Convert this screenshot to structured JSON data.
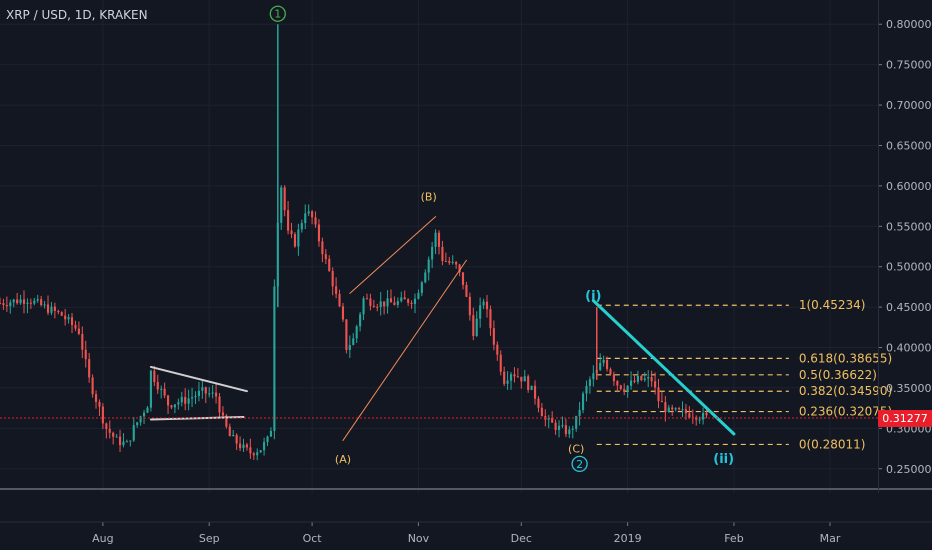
{
  "header": {
    "title": "XRP / USD, 1D, KRAKEN"
  },
  "current_price": {
    "label": "0.31277",
    "value": 0.31277,
    "color": "#e91e2b"
  },
  "colors": {
    "background": "#131722",
    "up": "#26a69a",
    "down": "#ef5350",
    "wave_label_green": "#4caf50",
    "wave_label_teal": "#26c6da",
    "abc_label": "#f0c060",
    "fib_line": "#f0c060",
    "trendline": "#26d0ce",
    "channel": "#f48a5a"
  },
  "chart_data": {
    "type": "candlestick",
    "symbol": "XRP / USD",
    "interval": "1D",
    "exchange": "KRAKEN",
    "ylim": [
      0.22,
      0.83
    ],
    "y_ticks": [
      "0.25000",
      "0.30000",
      "0.35000",
      "0.40000",
      "0.45000",
      "0.50000",
      "0.55000",
      "0.60000",
      "0.65000",
      "0.70000",
      "0.75000",
      "0.80000"
    ],
    "x_ticks": [
      "Aug",
      "Sep",
      "Oct",
      "Nov",
      "Dec",
      "2019",
      "Feb",
      "Mar"
    ],
    "x_ticks_date": [
      "2018-08-01",
      "2018-09-01",
      "2018-10-01",
      "2018-11-01",
      "2018-12-01",
      "2019-01-01",
      "2019-02-01",
      "2019-03-01"
    ],
    "date_range": [
      "2018-07-02",
      "2019-03-15"
    ],
    "price_path": [
      [
        "2018-07-02",
        0.455
      ],
      [
        "2018-07-10",
        0.46
      ],
      [
        "2018-07-20",
        0.44
      ],
      [
        "2018-07-25",
        0.42
      ],
      [
        "2018-07-28",
        0.36
      ],
      [
        "2018-08-02",
        0.3
      ],
      [
        "2018-08-05",
        0.285
      ],
      [
        "2018-08-08",
        0.28
      ],
      [
        "2018-08-10",
        0.3
      ],
      [
        "2018-08-14",
        0.33
      ],
      [
        "2018-08-15",
        0.37
      ],
      [
        "2018-08-20",
        0.33
      ],
      [
        "2018-08-25",
        0.335
      ],
      [
        "2018-08-30",
        0.345
      ],
      [
        "2018-09-03",
        0.34
      ],
      [
        "2018-09-05",
        0.31
      ],
      [
        "2018-09-07",
        0.29
      ],
      [
        "2018-09-11",
        0.275
      ],
      [
        "2018-09-13",
        0.27
      ],
      [
        "2018-09-16",
        0.275
      ],
      [
        "2018-09-18",
        0.285
      ],
      [
        "2018-09-19",
        0.3
      ],
      [
        "2018-09-20",
        0.48
      ],
      [
        "2018-09-21",
        0.56
      ],
      [
        "2018-09-22",
        0.6
      ],
      [
        "2018-09-24",
        0.54
      ],
      [
        "2018-09-26",
        0.53
      ],
      [
        "2018-09-29",
        0.57
      ],
      [
        "2018-10-01",
        0.56
      ],
      [
        "2018-10-04",
        0.52
      ],
      [
        "2018-10-07",
        0.48
      ],
      [
        "2018-10-10",
        0.43
      ],
      [
        "2018-10-11",
        0.4
      ],
      [
        "2018-10-13",
        0.41
      ],
      [
        "2018-10-16",
        0.46
      ],
      [
        "2018-10-20",
        0.455
      ],
      [
        "2018-10-25",
        0.455
      ],
      [
        "2018-10-31",
        0.46
      ],
      [
        "2018-11-04",
        0.51
      ],
      [
        "2018-11-06",
        0.54
      ],
      [
        "2018-11-08",
        0.51
      ],
      [
        "2018-11-12",
        0.5
      ],
      [
        "2018-11-14",
        0.48
      ],
      [
        "2018-11-17",
        0.42
      ],
      [
        "2018-11-20",
        0.46
      ],
      [
        "2018-11-24",
        0.39
      ],
      [
        "2018-11-26",
        0.36
      ],
      [
        "2018-11-28",
        0.37
      ],
      [
        "2018-12-02",
        0.36
      ],
      [
        "2018-12-05",
        0.34
      ],
      [
        "2018-12-08",
        0.31
      ],
      [
        "2018-12-12",
        0.3
      ],
      [
        "2018-12-15",
        0.295
      ],
      [
        "2018-12-17",
        0.31
      ],
      [
        "2018-12-19",
        0.34
      ],
      [
        "2018-12-21",
        0.36
      ],
      [
        "2018-12-23",
        0.37
      ],
      [
        "2018-12-25",
        0.385
      ],
      [
        "2018-12-27",
        0.37
      ],
      [
        "2018-12-29",
        0.355
      ],
      [
        "2018-12-31",
        0.35
      ],
      [
        "2019-01-04",
        0.36
      ],
      [
        "2019-01-08",
        0.36
      ],
      [
        "2019-01-10",
        0.335
      ],
      [
        "2019-01-13",
        0.32
      ],
      [
        "2019-01-16",
        0.32
      ],
      [
        "2019-01-20",
        0.318
      ],
      [
        "2019-01-24",
        0.313
      ]
    ],
    "pivot_candles": [
      {
        "date": "2018-09-21",
        "low": 0.45,
        "high": 0.8,
        "color": "up"
      },
      {
        "date": "2018-12-23",
        "low": 0.36,
        "high": 0.45,
        "color": "down"
      }
    ],
    "wave_labels": [
      {
        "text": "1",
        "style": "circle",
        "date": "2018-09-21",
        "price": 0.813,
        "color": "wave_label_green"
      },
      {
        "text": "(B)",
        "style": "plain",
        "date": "2018-11-04",
        "price": 0.587,
        "color": "abc_label"
      },
      {
        "text": "(A)",
        "style": "plain",
        "date": "2018-10-10",
        "price": 0.262,
        "color": "abc_label"
      },
      {
        "text": "(C)",
        "style": "plain",
        "date": "2018-12-17",
        "price": 0.275,
        "color": "abc_label"
      },
      {
        "text": "2",
        "style": "circle",
        "date": "2018-12-18",
        "price": 0.256,
        "color": "wave_label_teal"
      },
      {
        "text": "(i)",
        "style": "plain",
        "date": "2018-12-22",
        "price": 0.464,
        "color": "wave_label_teal"
      },
      {
        "text": "(ii)",
        "style": "plain",
        "date": "2019-01-29",
        "price": 0.262,
        "color": "wave_label_teal"
      }
    ],
    "fib_levels": [
      {
        "ratio": "1",
        "price": 0.45234,
        "label": "1(0.45234)"
      },
      {
        "ratio": "0.618",
        "price": 0.38655,
        "label": "0.618(0.38655)"
      },
      {
        "ratio": "0.5",
        "price": 0.36622,
        "label": "0.5(0.36622)"
      },
      {
        "ratio": "0.382",
        "price": 0.3459,
        "label": "0.382(0.34590)"
      },
      {
        "ratio": "0.236",
        "price": 0.32075,
        "label": "0.236(0.32075)"
      },
      {
        "ratio": "0",
        "price": 0.28011,
        "label": "0(0.28011)"
      }
    ],
    "fib_range": [
      "2018-12-23",
      "2019-02-17"
    ],
    "trendlines": [
      {
        "name": "downtrend",
        "from": [
          "2018-12-22",
          0.458
        ],
        "to": [
          "2019-02-01",
          0.293
        ],
        "color": "trendline",
        "width": 3
      },
      {
        "name": "triangle-top",
        "from": [
          "2018-08-15",
          0.376
        ],
        "to": [
          "2018-09-12",
          0.346
        ],
        "color": "#d0d0d0",
        "width": 2
      },
      {
        "name": "triangle-bottom",
        "from": [
          "2018-08-15",
          0.311
        ],
        "to": [
          "2018-09-11",
          0.314
        ],
        "color": "#d0d0d0",
        "width": 2
      },
      {
        "name": "channel-lower",
        "from": [
          "2018-10-10",
          0.285
        ],
        "to": [
          "2018-11-15",
          0.508
        ],
        "color": "channel",
        "width": 1
      },
      {
        "name": "channel-upper",
        "from": [
          "2018-10-12",
          0.467
        ],
        "to": [
          "2018-11-06",
          0.562
        ],
        "color": "channel",
        "width": 1
      }
    ]
  }
}
